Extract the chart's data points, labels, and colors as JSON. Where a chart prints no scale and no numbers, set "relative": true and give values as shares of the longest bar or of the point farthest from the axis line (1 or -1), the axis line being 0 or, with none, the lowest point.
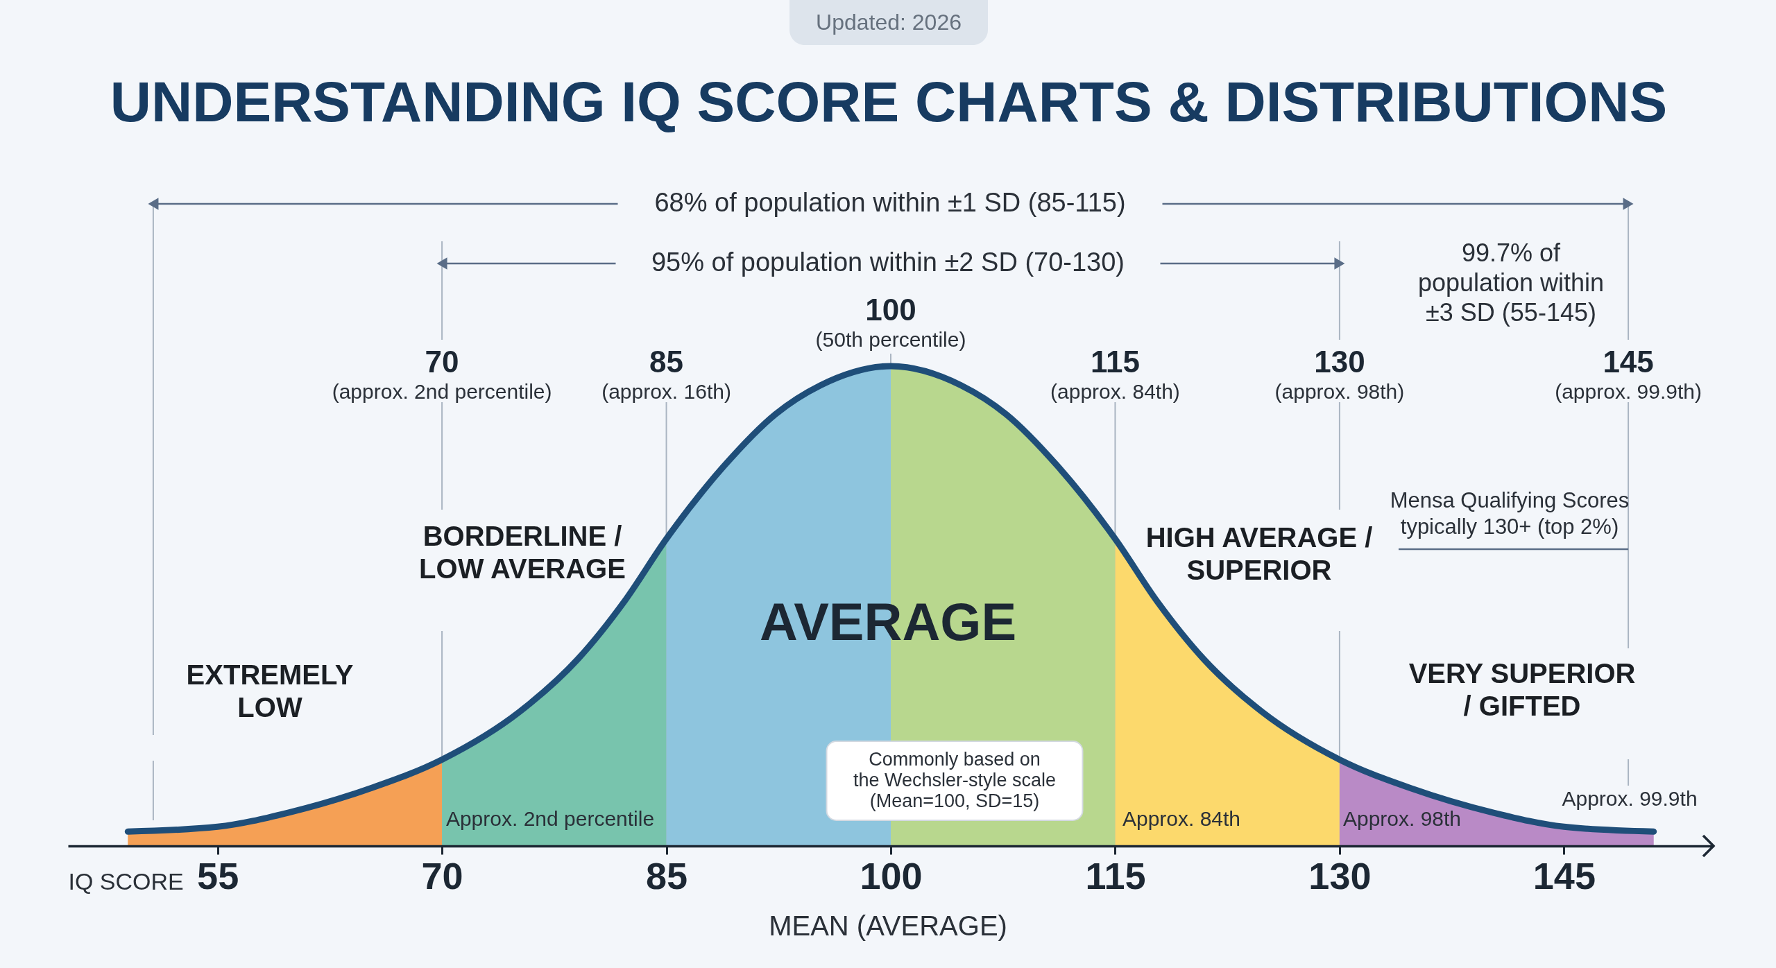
{
  "chart_data": {
    "type": "area",
    "title": "UNDERSTANDING IQ SCORE CHARTS & DISTRIBUTIONS",
    "subtitle": "Updated: 2026",
    "xlabel": "IQ SCORE",
    "relative": true,
    "xlim": [
      45,
      155
    ],
    "xticks": [
      55,
      70,
      85,
      100,
      115,
      130,
      145
    ],
    "series": [
      {
        "color": "#f5a055",
        "x": [
          49,
          55,
          59.8,
          65.2,
          70
        ],
        "values": [
          0.03,
          0.04,
          0.07,
          0.12,
          0.18
        ]
      },
      {
        "color": "#78c4ad",
        "x": [
          70,
          75.2,
          79.1,
          82.2,
          85
        ],
        "values": [
          0.18,
          0.28,
          0.39,
          0.51,
          0.64
        ]
      },
      {
        "color": "#8ec5de",
        "x": [
          85,
          88.8,
          92.3,
          95.3,
          100
        ],
        "values": [
          0.64,
          0.79,
          0.9,
          0.96,
          1
        ]
      },
      {
        "color": "#b8d78e",
        "x": [
          100,
          104.7,
          107.7,
          111.2,
          115
        ],
        "values": [
          1,
          0.96,
          0.9,
          0.79,
          0.64
        ]
      },
      {
        "color": "#fcd96c",
        "x": [
          115,
          117.8,
          120.9,
          124.8,
          130
        ],
        "values": [
          0.64,
          0.51,
          0.39,
          0.28,
          0.18
        ]
      },
      {
        "color": "#b98ac6",
        "x": [
          130,
          134.8,
          140.2,
          145,
          151
        ],
        "values": [
          0.18,
          0.12,
          0.07,
          0.04,
          0.03
        ]
      },
      {
        "type": "line",
        "color": "#1f4e79",
        "x": [
          49,
          55,
          59.8,
          65.2,
          70,
          75.2,
          79.1,
          82.2,
          85,
          88.8,
          92.3,
          95.3,
          100,
          104.7,
          107.7,
          111.2,
          115,
          117.8,
          120.9,
          124.8,
          130,
          134.8,
          140.2,
          145,
          151
        ],
        "values": [
          0.03,
          0.04,
          0.07,
          0.12,
          0.18,
          0.28,
          0.39,
          0.51,
          0.64,
          0.79,
          0.9,
          0.96,
          1,
          0.96,
          0.9,
          0.79,
          0.64,
          0.51,
          0.39,
          0.28,
          0.18,
          0.12,
          0.07,
          0.04,
          0.03
        ]
      }
    ],
    "ref_lines": [
      {
        "axis": "x",
        "value": 50.7,
        "color": "#aab5c2"
      },
      {
        "axis": "x",
        "value": 70,
        "label": "70\n(approx. 2nd percentile)",
        "color": "#aab5c2"
      },
      {
        "axis": "x",
        "value": 85,
        "label": "85\n(approx. 16th)",
        "color": "#aab5c2"
      },
      {
        "axis": "x",
        "value": 100,
        "label": "100\n(50th percentile)",
        "color": "#aab5c2"
      },
      {
        "axis": "x",
        "value": 115,
        "label": "115\n(approx. 84th)",
        "color": "#aab5c2"
      },
      {
        "axis": "x",
        "value": 130,
        "label": "130\n(approx. 98th)",
        "color": "#aab5c2"
      },
      {
        "axis": "x",
        "value": 149.3,
        "label": "145\n(approx. 99.9th)",
        "color": "#aab5c2"
      }
    ],
    "annotations": [
      "68% of population within ±1 SD (85-115)",
      "95% of population within ±2 SD (70-130)",
      "99.7% of\npopulation within\n±3 SD (55-145)",
      "Mensa Qualifying Scores\ntypically 130+ (top 2%)",
      "EXTREMELY\nLOW",
      "BORDERLINE /\nLOW AVERAGE",
      "AVERAGE",
      "HIGH AVERAGE /\nSUPERIOR",
      "VERY SUPERIOR\n/ GIFTED",
      "Approx. 2nd percentile",
      "Approx. 84th",
      "Approx. 98th",
      "Approx. 99.9th",
      "Commonly based on\nthe Wechsler-style scale\n(Mean=100, SD=15)",
      "MEAN (AVERAGE)"
    ]
  }
}
